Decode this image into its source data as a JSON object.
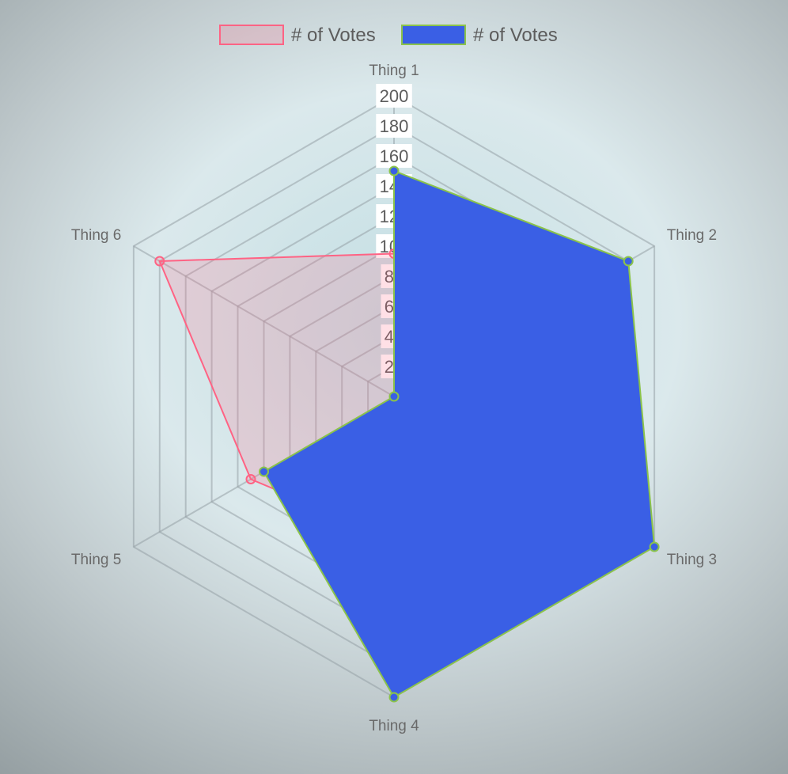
{
  "chart_data": {
    "type": "radar",
    "labels": [
      "Thing 1",
      "Thing 2",
      "Thing 3",
      "Thing 4",
      "Thing 5",
      "Thing 6"
    ],
    "series": [
      {
        "name": "# of Votes",
        "values": [
          95,
          90,
          100,
          95,
          110,
          180
        ],
        "fill_color": "rgba(255,99,132,0.2)",
        "line_color": "#ff6384"
      },
      {
        "name": "# of Votes",
        "values": [
          150,
          180,
          200,
          200,
          100,
          0
        ],
        "fill_color": "#3a5fe5",
        "line_color": "#8bc34a"
      }
    ],
    "r_range": [
      0,
      200
    ],
    "ticks": [
      0,
      20,
      40,
      60,
      80,
      100,
      120,
      140,
      160,
      180,
      200
    ],
    "grid": true,
    "legend_position": "top"
  }
}
